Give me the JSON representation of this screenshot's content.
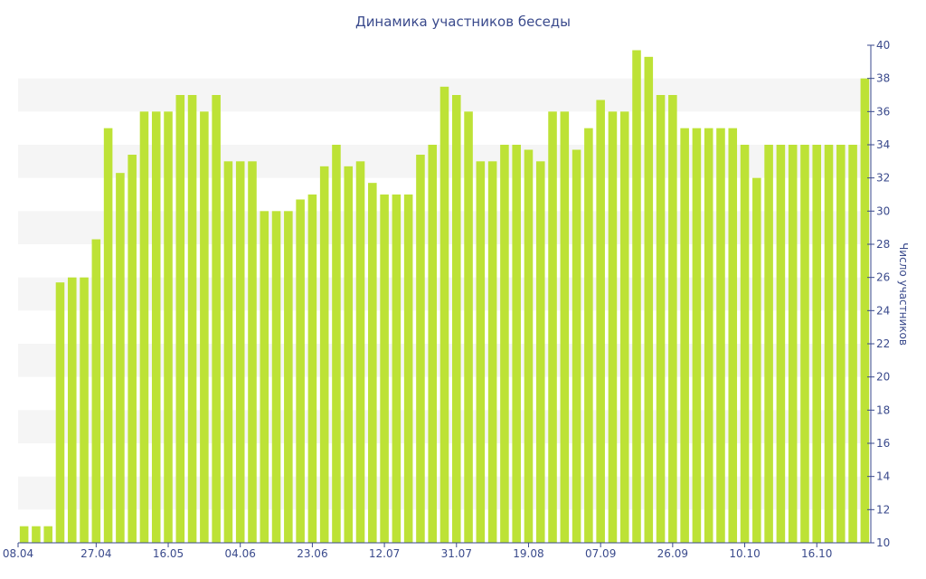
{
  "chart_data": {
    "type": "bar",
    "title": "Динамика участников беседы",
    "xlabel": "",
    "ylabel": "Число участников",
    "ylim": [
      10,
      40
    ],
    "y_ticks": [
      10,
      12,
      14,
      16,
      18,
      20,
      22,
      24,
      26,
      28,
      30,
      32,
      34,
      36,
      38,
      40
    ],
    "y_axis_position": "right",
    "x_tick_labels": [
      "08.04",
      "27.04",
      "16.05",
      "04.06",
      "23.06",
      "12.07",
      "31.07",
      "19.08",
      "07.09",
      "26.09",
      "10.10",
      "16.10"
    ],
    "grid": "alternating horizontal bands",
    "legend": "none",
    "colors": {
      "bar": "#bde236",
      "band": "#f5f5f5",
      "text": "#3a4a8c",
      "axis": "#3a4a8c"
    },
    "series": [
      {
        "values": [
          11,
          11,
          11,
          25.7,
          26,
          26,
          28.3,
          35,
          32.3,
          33.4,
          36,
          36,
          36,
          37,
          37,
          36,
          37,
          33,
          33,
          33,
          30,
          30,
          30,
          30.7,
          31,
          32.7,
          34,
          32.7,
          33,
          31.7,
          31,
          31,
          31,
          33.4,
          34,
          37.5,
          37,
          36,
          33,
          33,
          34,
          34,
          33.7,
          33,
          36,
          36,
          33.7,
          35,
          36.7,
          36,
          36,
          39.7,
          39.3,
          37,
          37,
          35,
          35,
          35,
          35,
          35,
          34,
          32,
          34,
          34,
          34,
          34,
          34,
          34,
          34,
          34,
          38
        ]
      }
    ]
  }
}
